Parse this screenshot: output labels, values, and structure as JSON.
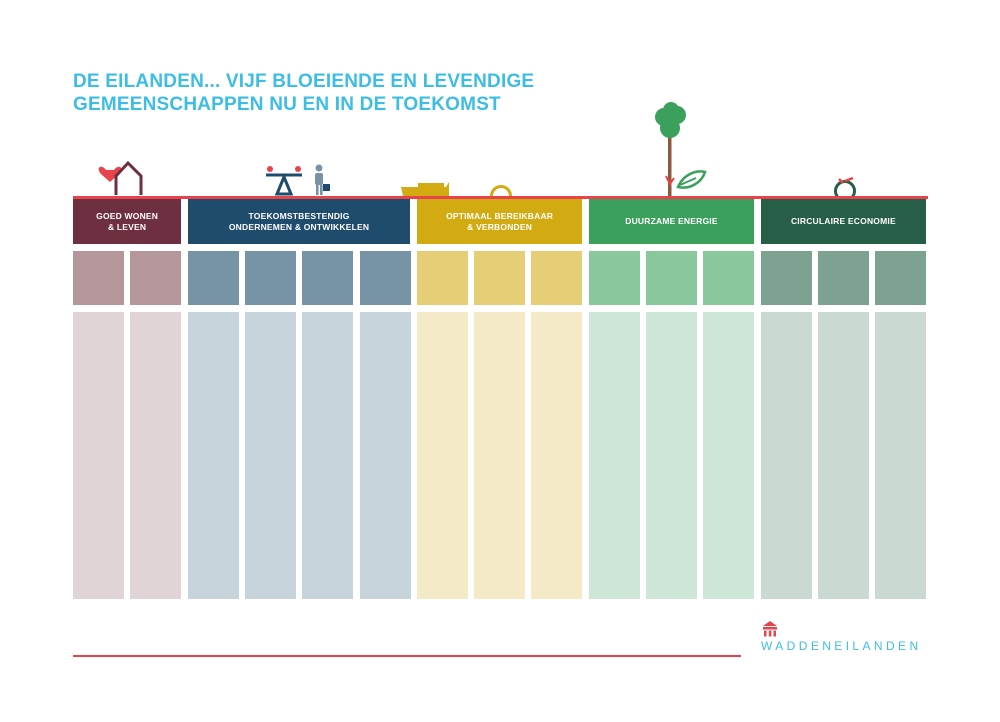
{
  "title": {
    "line1": "DE EILANDEN... VIJF BLOEIENDE EN LEVENDIGE",
    "line2": "GEMEENSCHAPPEN NU EN IN DE TOEKOMST"
  },
  "pillars": [
    {
      "label": "GOED WONEN\n& LEVEN",
      "color": "#6e2f41",
      "mid_color": "#b5979b",
      "light_color": "#e1d4d7",
      "columns": 2
    },
    {
      "label": "TOEKOMSTBESTENDIG\nONDERNEMEN & ONTWIKKELEN",
      "color": "#1f4b6c",
      "mid_color": "#7793a6",
      "light_color": "#c8d4db",
      "columns": 4
    },
    {
      "label": "OPTIMAAL BEREIKBAAR\n& VERBONDEN",
      "color": "#d2aa12",
      "mid_color": "#e6ce77",
      "light_color": "#f5eac7",
      "columns": 3
    },
    {
      "label": "DUURZAME ENERGIE",
      "color": "#3ba05b",
      "mid_color": "#89c79c",
      "light_color": "#cee6d7",
      "columns": 3
    },
    {
      "label": "CIRCULAIRE ECONOMIE",
      "color": "#275e47",
      "mid_color": "#7ea291",
      "light_color": "#cad9d2",
      "columns": 3
    }
  ],
  "icons": [
    "house-heart-icon",
    "balance-seesaw-icon",
    "businessman-icon",
    "ferry-icon",
    "ring-icon",
    "tree-icon",
    "leaf-icon",
    "circular-arrow-icon"
  ],
  "brand": {
    "name": "WADDENEILANDEN",
    "accent": "#e8424a",
    "text_color": "#3dbde6"
  }
}
